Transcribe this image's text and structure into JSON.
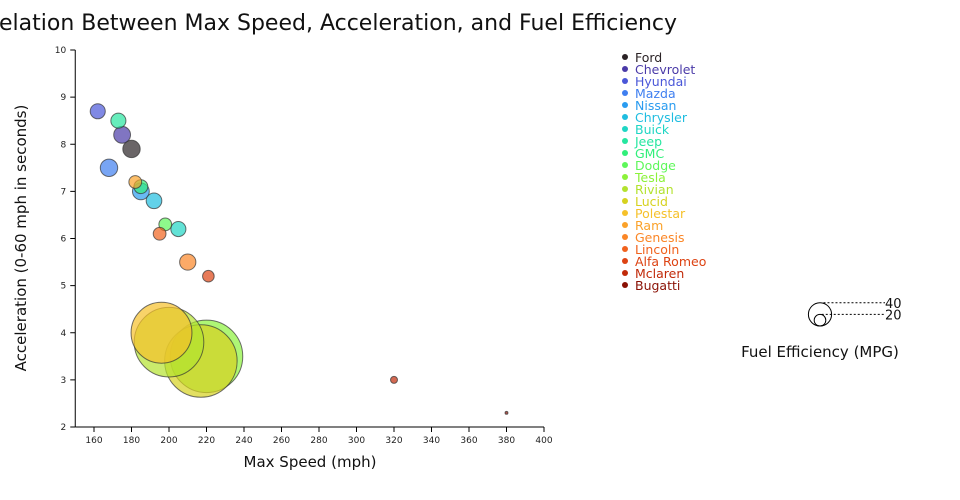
{
  "chart_data": {
    "type": "scatter",
    "title": "Correlation Between Max Speed, Acceleration, and Fuel Efficiency",
    "xlabel": "Max Speed (mph)",
    "ylabel": "Acceleration (0-60 mph in seconds)",
    "size_label": "Fuel Efficiency (MPG)",
    "xlim": [
      150,
      400
    ],
    "ylim": [
      2,
      10
    ],
    "xticks": [
      160,
      180,
      200,
      220,
      240,
      260,
      280,
      300,
      320,
      340,
      360,
      380,
      400
    ],
    "yticks": [
      2,
      3,
      4,
      5,
      6,
      7,
      8,
      9,
      10
    ],
    "size_legend": [
      40,
      20
    ],
    "legend_position": "right",
    "points": [
      {
        "name": "Ford",
        "x": 180,
        "y": 7.9,
        "mpg": 30,
        "color": "#2b2326"
      },
      {
        "name": "Chevrolet",
        "x": 175,
        "y": 8.2,
        "mpg": 29,
        "color": "#4a3aa8"
      },
      {
        "name": "Hyundai",
        "x": 162,
        "y": 8.7,
        "mpg": 26,
        "color": "#4a57d8"
      },
      {
        "name": "Mazda",
        "x": 168,
        "y": 7.5,
        "mpg": 30,
        "color": "#3f7ff0"
      },
      {
        "name": "Nissan",
        "x": 185,
        "y": 7.0,
        "mpg": 29,
        "color": "#2a9cf0"
      },
      {
        "name": "Chrysler",
        "x": 192,
        "y": 6.8,
        "mpg": 27,
        "color": "#1fbde0"
      },
      {
        "name": "Buick",
        "x": 205,
        "y": 6.2,
        "mpg": 26,
        "color": "#1fd6c4"
      },
      {
        "name": "Jeep",
        "x": 173,
        "y": 8.5,
        "mpg": 26,
        "color": "#26e6a0"
      },
      {
        "name": "GMC",
        "x": 185,
        "y": 7.1,
        "mpg": 24,
        "color": "#31ef7a"
      },
      {
        "name": "Dodge",
        "x": 198,
        "y": 6.3,
        "mpg": 22,
        "color": "#5ef75a"
      },
      {
        "name": "Tesla",
        "x": 220,
        "y": 3.5,
        "mpg": 125,
        "color": "#8cf23a"
      },
      {
        "name": "Rivian",
        "x": 200,
        "y": 3.8,
        "mpg": 120,
        "color": "#b3e22e"
      },
      {
        "name": "Lucid",
        "x": 217,
        "y": 3.4,
        "mpg": 125,
        "color": "#d6d21f"
      },
      {
        "name": "Polestar",
        "x": 196,
        "y": 4.0,
        "mpg": 105,
        "color": "#f6c12a"
      },
      {
        "name": "Ram",
        "x": 182,
        "y": 7.2,
        "mpg": 22,
        "color": "#fba22a"
      },
      {
        "name": "Genesis",
        "x": 210,
        "y": 5.5,
        "mpg": 28,
        "color": "#fb8626"
      },
      {
        "name": "Lincoln",
        "x": 195,
        "y": 6.1,
        "mpg": 22,
        "color": "#f1621d"
      },
      {
        "name": "Alfa Romeo",
        "x": 221,
        "y": 5.2,
        "mpg": 20,
        "color": "#dd4313"
      },
      {
        "name": "Mclaren",
        "x": 320,
        "y": 3.0,
        "mpg": 12,
        "color": "#c12a09"
      },
      {
        "name": "Bugatti",
        "x": 380,
        "y": 2.3,
        "mpg": 5,
        "color": "#8a1004"
      }
    ]
  }
}
